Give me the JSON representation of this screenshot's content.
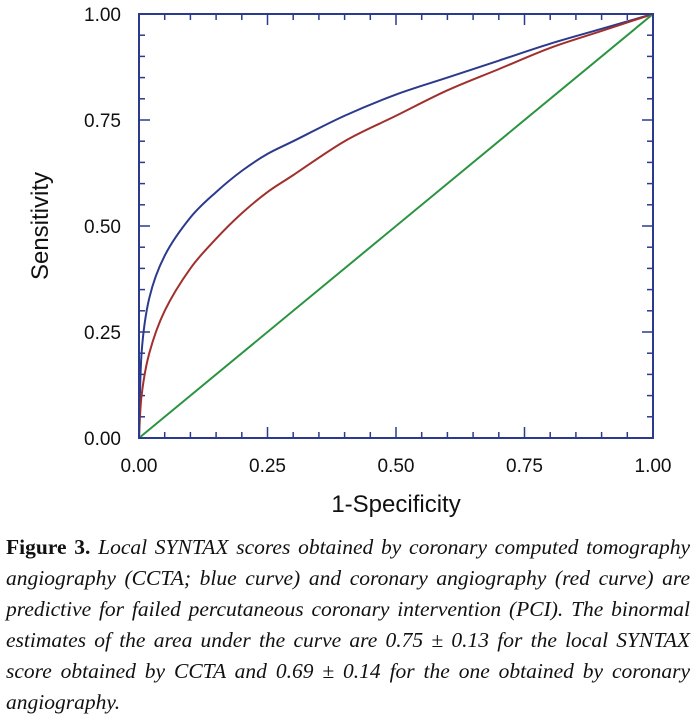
{
  "chart_data": {
    "type": "line",
    "xlabel": "1-Specificity",
    "ylabel": "Sensitivity",
    "xlim": [
      0,
      1
    ],
    "ylim": [
      0,
      1
    ],
    "x_ticks": [
      "0.00",
      "0.25",
      "0.50",
      "0.75",
      "1.00"
    ],
    "y_ticks": [
      "0.00",
      "0.25",
      "0.50",
      "0.75",
      "1.00"
    ],
    "grid": false,
    "series": [
      {
        "color": "#2b3a8c",
        "x": [
          0,
          0.005,
          0.02,
          0.05,
          0.1,
          0.15,
          0.2,
          0.25,
          0.3,
          0.4,
          0.5,
          0.6,
          0.7,
          0.8,
          0.9,
          1.0
        ],
        "y": [
          0,
          0.2,
          0.33,
          0.43,
          0.52,
          0.58,
          0.63,
          0.67,
          0.7,
          0.76,
          0.81,
          0.85,
          0.89,
          0.93,
          0.965,
          1.0
        ]
      },
      {
        "color": "#a0302e",
        "x": [
          0,
          0.005,
          0.02,
          0.05,
          0.1,
          0.15,
          0.2,
          0.25,
          0.3,
          0.4,
          0.5,
          0.6,
          0.7,
          0.8,
          0.9,
          1.0
        ],
        "y": [
          0,
          0.1,
          0.2,
          0.3,
          0.4,
          0.47,
          0.53,
          0.58,
          0.62,
          0.7,
          0.76,
          0.82,
          0.87,
          0.92,
          0.96,
          1.0
        ]
      },
      {
        "color": "#2a9440",
        "x": [
          0,
          1
        ],
        "y": [
          0,
          1
        ]
      }
    ]
  },
  "caption": {
    "lead": "Figure 3.",
    "text": "Local SYNTAX scores obtained by coronary computed tomography angiography (CCTA; blue curve) and coronary angiography (red curve) are predictive for failed percutaneous coronary intervention (PCI). The binormal estimates of the area under the curve are 0.75 ± 0.13 for the local SYNTAX score obtained by CCTA and 0.69 ± 0.14 for the one obtained by coronary angiography."
  }
}
